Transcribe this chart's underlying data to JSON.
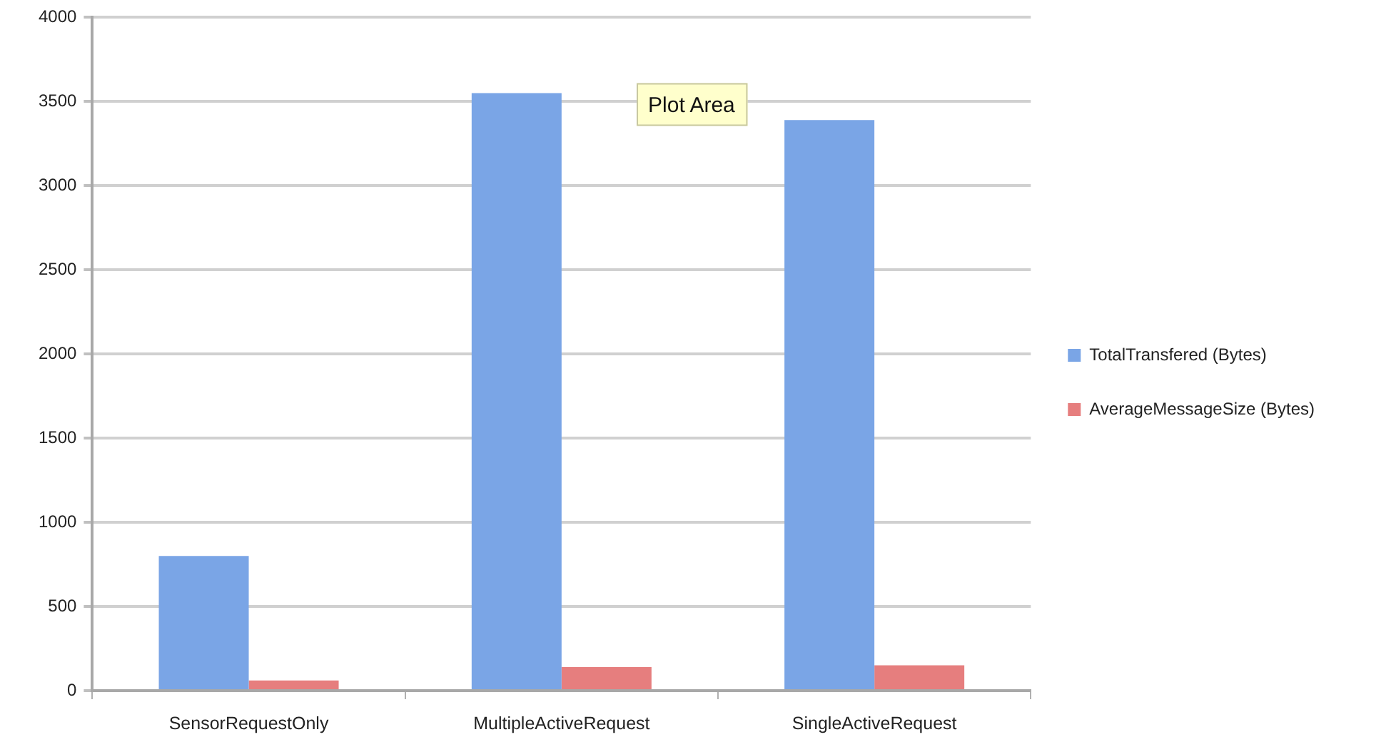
{
  "chart_data": {
    "type": "bar",
    "categories": [
      "SensorRequestOnly",
      "MultipleActiveRequest",
      "SingleActiveRequest"
    ],
    "series": [
      {
        "name": "TotalTransfered (Bytes)",
        "color": "#7aa5e6",
        "values": [
          800,
          3550,
          3390
        ]
      },
      {
        "name": "AverageMessageSize (Bytes)",
        "color": "#e67e7e",
        "values": [
          60,
          140,
          150
        ]
      }
    ],
    "ylim": [
      0,
      4000
    ],
    "yticks": [
      0,
      500,
      1000,
      1500,
      2000,
      2500,
      3000,
      3500,
      4000
    ],
    "grid": "y",
    "legend": "right",
    "annotations": [
      "Plot Area"
    ]
  }
}
